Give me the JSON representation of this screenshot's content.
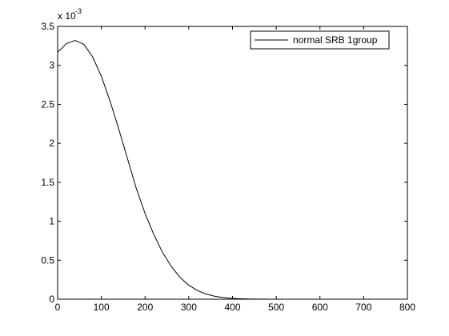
{
  "chart_data": {
    "type": "line",
    "title": "",
    "xlabel": "",
    "ylabel": "",
    "xlim": [
      0,
      800
    ],
    "ylim": [
      0,
      0.0035
    ],
    "y_exponent_label": "x 10",
    "y_exponent_power": "-3",
    "grid": false,
    "legend_position": "top-right",
    "x_ticks": [
      0,
      100,
      200,
      300,
      400,
      500,
      600,
      700,
      800
    ],
    "x_tick_labels": [
      "0",
      "100",
      "200",
      "300",
      "400",
      "500",
      "600",
      "700",
      "800"
    ],
    "y_ticks": [
      0,
      0.0005,
      0.001,
      0.0015,
      0.002,
      0.0025,
      0.003,
      0.0035
    ],
    "y_tick_labels": [
      "0",
      "0.5",
      "1",
      "1.5",
      "2",
      "2.5",
      "3",
      "3.5"
    ],
    "series": [
      {
        "name": "normal SRB 1group",
        "color": "#000000",
        "x": [
          0,
          10,
          20,
          40,
          60,
          80,
          100,
          120,
          140,
          160,
          180,
          200,
          220,
          240,
          260,
          280,
          300,
          320,
          340,
          360,
          380,
          400,
          420,
          440,
          460,
          500,
          600,
          700,
          760
        ],
        "y": [
          0.00317,
          0.00322,
          0.00328,
          0.00332,
          0.00327,
          0.00311,
          0.00286,
          0.00254,
          0.00218,
          0.0018,
          0.00142,
          0.0011,
          0.00083,
          0.0006,
          0.00042,
          0.00028,
          0.00018,
          0.00011,
          6.5e-05,
          3.7e-05,
          2e-05,
          1e-05,
          5e-06,
          2.5e-06,
          1.2e-06,
          3e-07,
          1e-08,
          0,
          0
        ]
      }
    ]
  }
}
